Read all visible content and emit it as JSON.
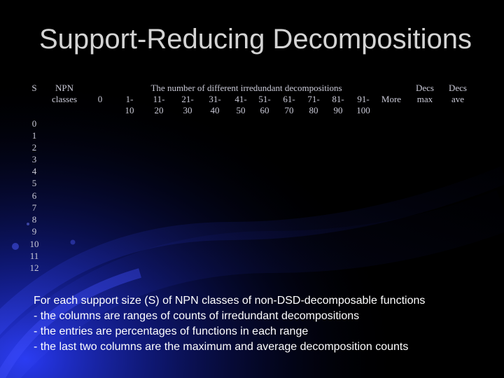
{
  "slide": {
    "title": "Support-Reducing Decompositions",
    "table": {
      "group_title": "The number of different irredundant decompositions",
      "columns": [
        {
          "line1": "S",
          "line2": ""
        },
        {
          "line1": "NPN",
          "line2": "classes"
        },
        {
          "line1": "0",
          "line2": ""
        },
        {
          "line1": "1-",
          "line2": "10"
        },
        {
          "line1": "11-",
          "line2": "20"
        },
        {
          "line1": "21-",
          "line2": "30"
        },
        {
          "line1": "31-",
          "line2": "40"
        },
        {
          "line1": "41-",
          "line2": "50"
        },
        {
          "line1": "51-",
          "line2": "60"
        },
        {
          "line1": "61-",
          "line2": "70"
        },
        {
          "line1": "71-",
          "line2": "80"
        },
        {
          "line1": "81-",
          "line2": "90"
        },
        {
          "line1": "91-",
          "line2": "100"
        },
        {
          "line1": "More",
          "line2": ""
        },
        {
          "line1": "Decs",
          "line2": "max"
        },
        {
          "line1": "Decs",
          "line2": "ave"
        }
      ],
      "rows": [
        "0",
        "1",
        "2",
        "3",
        "4",
        "5",
        "6",
        "7",
        "8",
        "9",
        "10",
        "11",
        "12"
      ]
    },
    "caption": [
      "For each support size (S) of NPN classes of non-DSD-decomposable functions",
      "- the columns are ranges of counts of irredundant decompositions",
      "- the entries are percentages of functions in each range",
      "- the last two columns are the maximum and average decomposition counts"
    ]
  },
  "colors": {
    "background": "#000000",
    "swirl": "#1a2bd6",
    "title": "#d4d4d4",
    "table_text": "#c9c9d6",
    "caption": "#ffffff"
  }
}
